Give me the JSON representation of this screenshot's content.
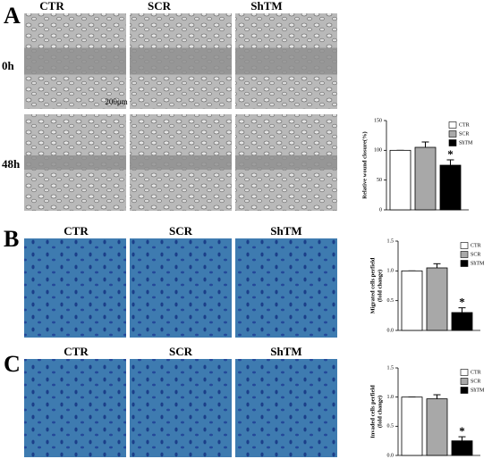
{
  "panels": [
    {
      "label": "A",
      "columns": [
        "CTR",
        "SCR",
        "ShTM"
      ],
      "rows": [
        "0h",
        "48h"
      ],
      "scale_bar": "200μm"
    },
    {
      "label": "B",
      "columns": [
        "CTR",
        "SCR",
        "ShTM"
      ]
    },
    {
      "label": "C",
      "columns": [
        "CTR",
        "SCR",
        "ShTM"
      ]
    }
  ],
  "chart_data": [
    {
      "type": "bar",
      "ylabel": [
        "Relative wound closure(%)"
      ],
      "categories": [
        "CTR",
        "SCR",
        "ShTM"
      ],
      "values": [
        100,
        105,
        75
      ],
      "errors": [
        0,
        9,
        9
      ],
      "colors": [
        "#ffffff",
        "#a8a8a8",
        "#000000"
      ],
      "ylim": [
        0,
        150
      ],
      "yticks": [
        0,
        50,
        100,
        150
      ],
      "annotation": "*",
      "legend": "top-right"
    },
    {
      "type": "bar",
      "ylabel": [
        "Migrated cells perfield",
        "(fold change)"
      ],
      "categories": [
        "CTR",
        "SCR",
        "ShTM"
      ],
      "values": [
        1.0,
        1.05,
        0.3
      ],
      "errors": [
        0,
        0.07,
        0.08
      ],
      "colors": [
        "#ffffff",
        "#a8a8a8",
        "#000000"
      ],
      "ylim": [
        0,
        1.5
      ],
      "yticks": [
        {
          "value": 0,
          "label": "0.0"
        },
        {
          "value": 0.5,
          "label": "0.5"
        },
        {
          "value": 1,
          "label": "1.0"
        },
        {
          "value": 1.5,
          "label": "1.5"
        }
      ],
      "annotation": "*",
      "legend": "top-right"
    },
    {
      "type": "bar",
      "ylabel": [
        "Invaded cells perfield",
        "(fold change)"
      ],
      "categories": [
        "CTR",
        "SCR",
        "ShTM"
      ],
      "values": [
        1.0,
        0.97,
        0.25
      ],
      "errors": [
        0,
        0.07,
        0.07
      ],
      "colors": [
        "#ffffff",
        "#a8a8a8",
        "#000000"
      ],
      "ylim": [
        0,
        1.5
      ],
      "yticks": [
        {
          "value": 0,
          "label": "0.0"
        },
        {
          "value": 0.5,
          "label": "0.5"
        },
        {
          "value": 1,
          "label": "1.0"
        },
        {
          "value": 1.5,
          "label": "1.5"
        }
      ],
      "annotation": "*",
      "legend": "top-right"
    }
  ]
}
